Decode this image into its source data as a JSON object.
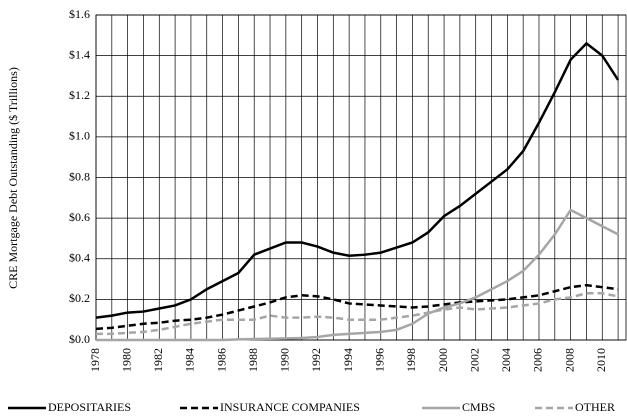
{
  "chart_data": {
    "type": "line",
    "y_label": "CRE Mortgage Debt Outstanding ($ Trillions)",
    "x": [
      1978,
      1979,
      1980,
      1981,
      1982,
      1983,
      1984,
      1985,
      1986,
      1987,
      1988,
      1989,
      1990,
      1991,
      1992,
      1993,
      1994,
      1995,
      1996,
      1997,
      1998,
      1999,
      2000,
      2001,
      2002,
      2003,
      2004,
      2005,
      2006,
      2007,
      2008,
      2009,
      2010,
      2011
    ],
    "series": [
      {
        "name": "DEPOSITARIES",
        "color": "#000000",
        "dash": "solid",
        "values": [
          0.11,
          0.12,
          0.135,
          0.14,
          0.155,
          0.17,
          0.2,
          0.25,
          0.29,
          0.33,
          0.42,
          0.45,
          0.48,
          0.48,
          0.46,
          0.43,
          0.415,
          0.42,
          0.43,
          0.455,
          0.48,
          0.53,
          0.61,
          0.66,
          0.72,
          0.78,
          0.84,
          0.93,
          1.07,
          1.22,
          1.38,
          1.46,
          1.4,
          1.28
        ]
      },
      {
        "name": "INSURANCE COMPANIES",
        "color": "#000000",
        "dash": "dashed",
        "values": [
          0.055,
          0.06,
          0.07,
          0.08,
          0.085,
          0.095,
          0.1,
          0.11,
          0.125,
          0.145,
          0.165,
          0.185,
          0.21,
          0.22,
          0.215,
          0.2,
          0.18,
          0.175,
          0.17,
          0.165,
          0.16,
          0.165,
          0.175,
          0.185,
          0.19,
          0.195,
          0.2,
          0.21,
          0.22,
          0.24,
          0.26,
          0.27,
          0.26,
          0.25
        ]
      },
      {
        "name": "CMBS",
        "color": "#a6a6a6",
        "dash": "solid",
        "values": [
          0,
          0,
          0,
          0,
          0,
          0,
          0,
          0,
          0,
          0.003,
          0.005,
          0.006,
          0.008,
          0.01,
          0.015,
          0.025,
          0.03,
          0.035,
          0.04,
          0.05,
          0.08,
          0.13,
          0.16,
          0.18,
          0.21,
          0.25,
          0.29,
          0.34,
          0.42,
          0.52,
          0.64,
          0.6,
          0.56,
          0.52
        ]
      },
      {
        "name": "OTHER",
        "color": "#a6a6a6",
        "dash": "dashed",
        "values": [
          0.03,
          0.03,
          0.035,
          0.04,
          0.05,
          0.065,
          0.08,
          0.09,
          0.1,
          0.1,
          0.1,
          0.12,
          0.11,
          0.11,
          0.115,
          0.11,
          0.1,
          0.1,
          0.1,
          0.11,
          0.12,
          0.135,
          0.15,
          0.16,
          0.15,
          0.155,
          0.16,
          0.17,
          0.18,
          0.2,
          0.21,
          0.23,
          0.23,
          0.215
        ]
      }
    ],
    "xlim": [
      1978,
      2011.5
    ],
    "xticks": [
      1978,
      1980,
      1982,
      1984,
      1986,
      1988,
      1990,
      1992,
      1994,
      1996,
      1998,
      2000,
      2002,
      2004,
      2006,
      2008,
      2010
    ],
    "xminor": [
      1979,
      1981,
      1983,
      1985,
      1987,
      1989,
      1991,
      1993,
      1995,
      1997,
      1999,
      2001,
      2003,
      2005,
      2007,
      2009,
      2011
    ],
    "ylim": [
      0,
      1.6
    ],
    "yticks": [
      {
        "value": 0,
        "label": "$0.0"
      },
      {
        "value": 0.2,
        "label": "$0.2"
      },
      {
        "value": 0.4,
        "label": "$0.4"
      },
      {
        "value": 0.6,
        "label": "$0.6"
      },
      {
        "value": 0.8,
        "label": "$0.8"
      },
      {
        "value": 1.0,
        "label": "$1.0"
      },
      {
        "value": 1.2,
        "label": "$1.2"
      },
      {
        "value": 1.4,
        "label": "$1.4"
      },
      {
        "value": 1.6,
        "label": "$1.6"
      }
    ],
    "grid": true,
    "legend": "bottom"
  }
}
